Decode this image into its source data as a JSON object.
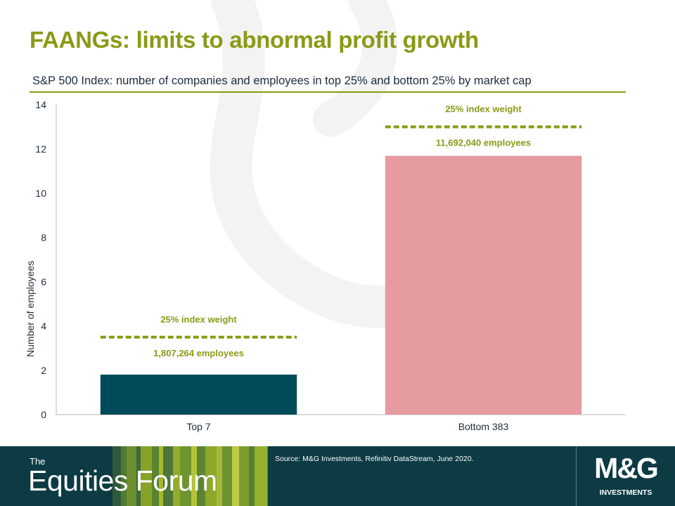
{
  "header": {
    "title": "FAANGs: limits to abnormal profit growth",
    "subtitle": "S&P 500 Index: number of companies and employees in top 25% and bottom 25% by market cap"
  },
  "chart_data": {
    "type": "bar",
    "categories": [
      "Top 7",
      "Bottom 383"
    ],
    "values": [
      1.807264,
      11.69204
    ],
    "bar_colors": [
      "#004b59",
      "#e69ba1"
    ],
    "ylabel": "Number of employees",
    "xlabel": "",
    "ylim": [
      0,
      14
    ],
    "y_ticks": [
      0,
      2,
      4,
      6,
      8,
      10,
      12,
      14
    ],
    "grid": false,
    "annotations": [
      {
        "category": "Top 7",
        "weight_label": "25% index weight",
        "weight_line_value": 3.5,
        "employees_label": "1,807,264 employees"
      },
      {
        "category": "Bottom 383",
        "weight_label": "25% index weight",
        "weight_line_value": 13.0,
        "employees_label": "11,692,040 employees"
      }
    ],
    "accent_color": "#8a9a16"
  },
  "footer": {
    "brand_the": "The",
    "brand_name": "Equities Forum",
    "source": "Source: M&G Investments, Refinitiv DataStream, June 2020.",
    "logo_text": "M&G",
    "logo_sub": "INVESTMENTS",
    "background": "#0c3b44"
  }
}
